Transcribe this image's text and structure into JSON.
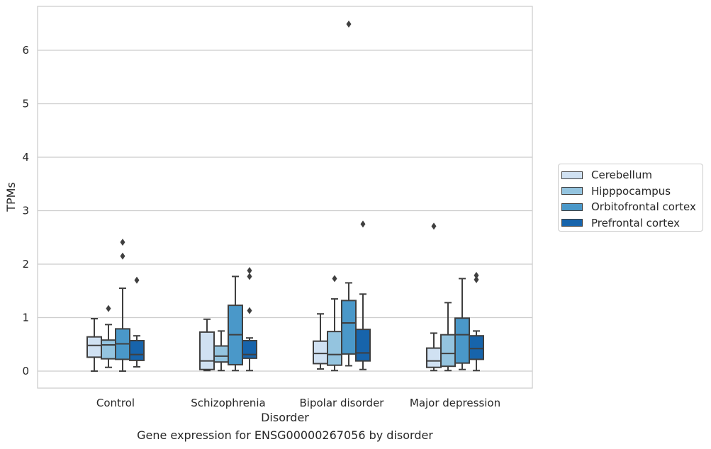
{
  "chart_data": {
    "type": "box",
    "caption": "Gene expression for ENSG00000267056 by disorder",
    "xlabel": "Disorder",
    "ylabel": "TPMs",
    "ylim": [
      -0.32,
      6.83
    ],
    "yticks": [
      0,
      1,
      2,
      3,
      4,
      5,
      6
    ],
    "grid": "horizontal",
    "legend_placement": "right",
    "categories": [
      "Control",
      "Schizophrenia",
      "Bipolar disorder",
      "Major depression"
    ],
    "series": [
      {
        "name": "Cerebellum",
        "color": "#d0e1f2",
        "boxes": [
          {
            "whislo": 0.0,
            "q1": 0.26,
            "med": 0.48,
            "q3": 0.64,
            "whishi": 0.98,
            "fliers": []
          },
          {
            "whislo": 0.01,
            "q1": 0.03,
            "med": 0.19,
            "q3": 0.73,
            "whishi": 0.97,
            "fliers": []
          },
          {
            "whislo": 0.04,
            "q1": 0.14,
            "med": 0.33,
            "q3": 0.56,
            "whishi": 1.07,
            "fliers": []
          },
          {
            "whislo": 0.01,
            "q1": 0.07,
            "med": 0.19,
            "q3": 0.43,
            "whishi": 0.71,
            "fliers": [
              2.71
            ]
          }
        ]
      },
      {
        "name": "Hipppocampus",
        "color": "#94c4df",
        "boxes": [
          {
            "whislo": 0.07,
            "q1": 0.23,
            "med": 0.49,
            "q3": 0.58,
            "whishi": 0.87,
            "fliers": [
              1.17
            ]
          },
          {
            "whislo": 0.01,
            "q1": 0.17,
            "med": 0.28,
            "q3": 0.47,
            "whishi": 0.75,
            "fliers": []
          },
          {
            "whislo": 0.01,
            "q1": 0.11,
            "med": 0.31,
            "q3": 0.74,
            "whishi": 1.35,
            "fliers": [
              1.73
            ]
          },
          {
            "whislo": 0.01,
            "q1": 0.09,
            "med": 0.33,
            "q3": 0.68,
            "whishi": 1.28,
            "fliers": []
          }
        ]
      },
      {
        "name": "Orbitofrontal cortex",
        "color": "#4a98c9",
        "boxes": [
          {
            "whislo": 0.0,
            "q1": 0.22,
            "med": 0.51,
            "q3": 0.79,
            "whishi": 1.55,
            "fliers": [
              2.15,
              2.41
            ]
          },
          {
            "whislo": 0.01,
            "q1": 0.12,
            "med": 0.68,
            "q3": 1.23,
            "whishi": 1.77,
            "fliers": []
          },
          {
            "whislo": 0.1,
            "q1": 0.32,
            "med": 0.9,
            "q3": 1.32,
            "whishi": 1.65,
            "fliers": [
              6.49
            ]
          },
          {
            "whislo": 0.03,
            "q1": 0.15,
            "med": 0.68,
            "q3": 0.99,
            "whishi": 1.73,
            "fliers": []
          }
        ]
      },
      {
        "name": "Prefrontal cortex",
        "color": "#1764ab",
        "boxes": [
          {
            "whislo": 0.08,
            "q1": 0.2,
            "med": 0.31,
            "q3": 0.57,
            "whishi": 0.66,
            "fliers": [
              1.7
            ]
          },
          {
            "whislo": 0.01,
            "q1": 0.24,
            "med": 0.31,
            "q3": 0.57,
            "whishi": 0.62,
            "fliers": [
              1.13,
              1.77,
              1.88
            ]
          },
          {
            "whislo": 0.03,
            "q1": 0.19,
            "med": 0.34,
            "q3": 0.78,
            "whishi": 1.44,
            "fliers": [
              2.75
            ]
          },
          {
            "whislo": 0.01,
            "q1": 0.22,
            "med": 0.42,
            "q3": 0.66,
            "whishi": 0.75,
            "fliers": [
              1.71,
              1.79
            ]
          }
        ]
      }
    ]
  }
}
